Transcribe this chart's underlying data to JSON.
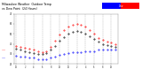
{
  "title": "Milwaukee Weather Outdoor Temp",
  "title2": "vs Dew Point (24 Hours)",
  "title_fontsize": 2.5,
  "background_color": "#ffffff",
  "grid_color": "#aaaaaa",
  "ylim": [
    20,
    70
  ],
  "yticks": [
    20,
    30,
    40,
    50,
    60,
    70
  ],
  "ytick_labels": [
    "20",
    "30",
    "40",
    "50",
    "60",
    "70"
  ],
  "hours": [
    0,
    1,
    2,
    3,
    4,
    5,
    6,
    7,
    8,
    9,
    10,
    11,
    12,
    13,
    14,
    15,
    16,
    17,
    18,
    19,
    20,
    21,
    22,
    23
  ],
  "temp": [
    38,
    37,
    36,
    35,
    34,
    33,
    32,
    33,
    37,
    43,
    49,
    54,
    57,
    59,
    60,
    59,
    57,
    54,
    50,
    46,
    44,
    42,
    41,
    40
  ],
  "dew": [
    28,
    27,
    27,
    26,
    26,
    25,
    25,
    25,
    26,
    27,
    29,
    30,
    31,
    32,
    32,
    32,
    33,
    33,
    33,
    34,
    34,
    34,
    34,
    34
  ],
  "outdoor": [
    35,
    34,
    33,
    32,
    31,
    30,
    30,
    31,
    34,
    38,
    43,
    47,
    50,
    52,
    53,
    52,
    50,
    48,
    45,
    42,
    40,
    39,
    38,
    37
  ],
  "temp_color": "#ff0000",
  "dew_color": "#0000ff",
  "outdoor_color": "#000000",
  "legend_dew_color": "#0000ff",
  "legend_temp_color": "#ff0000",
  "xtick_hours": [
    0,
    2,
    4,
    6,
    8,
    10,
    12,
    14,
    16,
    18,
    20,
    22
  ],
  "xtick_labels": [
    "12",
    "2",
    "4",
    "6",
    "8",
    "10",
    "12",
    "2",
    "4",
    "6",
    "8",
    "10"
  ],
  "vlines_x": [
    0,
    2,
    4,
    6,
    8,
    10,
    12,
    14,
    16,
    18,
    20,
    22
  ],
  "marker_size": 0.8,
  "dot_size": 0.5
}
